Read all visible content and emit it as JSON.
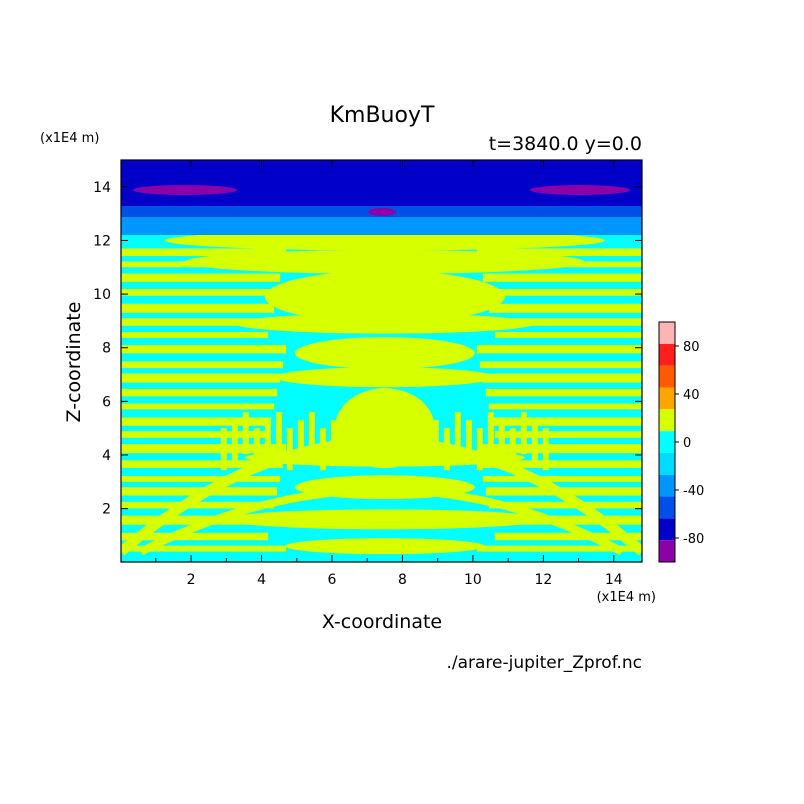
{
  "chart_data": {
    "type": "heatmap",
    "title": "KmBuoyT",
    "subtitle": "t=3840.0 y=0.0",
    "xlabel": "X-coordinate",
    "ylabel": "Z-coordinate",
    "x_scale_label": "(x1E4 m)",
    "y_scale_label": "(x1E4 m)",
    "xlim": [
      0.01,
      14.8
    ],
    "ylim": [
      0.01,
      15.0
    ],
    "x_ticks": [
      2,
      4,
      6,
      8,
      10,
      12,
      14
    ],
    "y_ticks": [
      2,
      4,
      6,
      8,
      10,
      12,
      14
    ],
    "source_label": "./arare-jupiter_Zprof.nc",
    "colorbar": {
      "levels": [
        -100,
        -80,
        -60,
        -40,
        -20,
        0,
        20,
        40,
        60,
        80,
        100
      ],
      "tick_labels": [
        "80",
        "40",
        "0",
        "-40",
        "-80"
      ],
      "tick_values": [
        80,
        40,
        0,
        -40,
        -80
      ],
      "colors": [
        "#8c00a8",
        "#0000c8",
        "#0050e8",
        "#0096ff",
        "#00dcff",
        "#00ffff",
        "#d6ff00",
        "#ffa500",
        "#ff5a00",
        "#ff1e1e",
        "#ffb4b4"
      ]
    },
    "fields": {
      "top_band": {
        "z_range": [
          13.0,
          15.0
        ],
        "value_range": [
          -80,
          -60
        ]
      },
      "transition_band": {
        "z_range": [
          12.3,
          13.0
        ],
        "value_range": [
          -40,
          -20
        ]
      },
      "purple_patches": {
        "z": 13.6,
        "value_range": [
          -100,
          -80
        ]
      },
      "lower_domain": {
        "z_range": [
          0.0,
          12.3
        ],
        "alternating_values": [
          [
            -20,
            0
          ],
          [
            0,
            20
          ]
        ]
      }
    }
  }
}
